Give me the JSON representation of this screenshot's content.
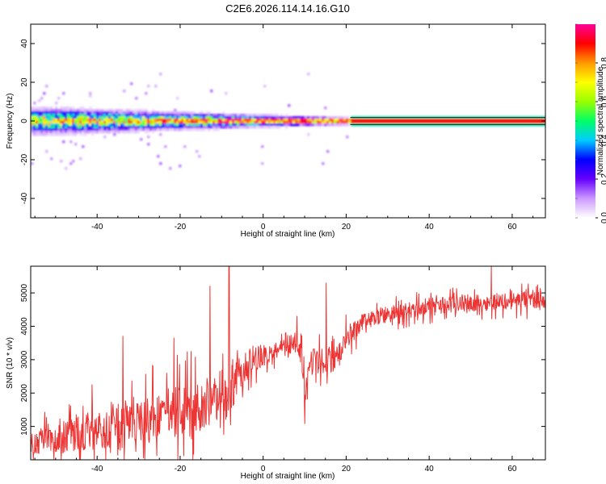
{
  "figure_title": "C2E6.2026.114.14.16.G10",
  "chart_data": [
    {
      "type": "heatmap",
      "panel": "spectrogram",
      "title": "C2E6.2026.114.14.16.G10",
      "xlabel": "Height of straight line (km)",
      "ylabel": "Frequency (Hz)",
      "xlim": [
        -56,
        68
      ],
      "ylim": [
        -50,
        50
      ],
      "xticks": [
        -40,
        -20,
        0,
        20,
        40,
        60
      ],
      "yticks": [
        -40,
        -20,
        0,
        20,
        40
      ],
      "xtick_labels": [
        "-40",
        "-20",
        "0",
        "20",
        "40",
        "60"
      ],
      "ytick_labels": [
        "-40",
        "-20",
        "0",
        "20",
        "40"
      ],
      "grid": false,
      "description_values": {
        "signal_center_freq_hz": 0,
        "broad_band_x_range": [
          -56,
          21
        ],
        "narrow_line_x_range": [
          21,
          68
        ],
        "broad_band_halfwidth_hz_start": 8,
        "broad_band_halfwidth_hz_end": 2
      },
      "colorbar": {
        "label": "Normalized spectral amplitude",
        "range": [
          0,
          1
        ],
        "ticks": [
          0.0,
          0.2,
          0.4,
          0.6,
          0.8
        ],
        "tick_labels": [
          "0.0",
          "0.2",
          "0.4",
          "0.6",
          "0.8"
        ],
        "colormap": [
          "#ffffff",
          "#cc99ff",
          "#6600ff",
          "#0000ff",
          "#00ccff",
          "#00ff66",
          "#99ff00",
          "#ffff00",
          "#ff9900",
          "#ff0000",
          "#ff0099"
        ]
      }
    },
    {
      "type": "line",
      "panel": "snr",
      "xlabel": "Height of straight line (km)",
      "ylabel": "SNR (10 * v/v)",
      "xlim": [
        -56,
        68
      ],
      "ylim": [
        0,
        5800
      ],
      "xticks": [
        -40,
        -20,
        0,
        20,
        40,
        60
      ],
      "yticks": [
        1000,
        2000,
        3000,
        4000,
        5000
      ],
      "xtick_labels": [
        "-40",
        "-20",
        "0",
        "20",
        "40",
        "60"
      ],
      "ytick_labels": [
        "1000",
        "2000",
        "3000",
        "4000",
        "5000"
      ],
      "line_color": "#ee3333",
      "series": [
        {
          "name": "SNR",
          "x": [
            -56,
            -52,
            -48,
            -44,
            -40,
            -36,
            -32,
            -28,
            -24,
            -20,
            -16,
            -12,
            -10,
            -8,
            -6,
            -4,
            -2,
            0,
            2,
            4,
            6,
            8,
            9,
            10,
            11,
            12,
            14,
            16,
            18,
            20,
            22,
            24,
            28,
            32,
            36,
            40,
            44,
            48,
            52,
            56,
            60,
            64,
            68
          ],
          "y": [
            500,
            600,
            700,
            850,
            950,
            1050,
            1150,
            1250,
            1350,
            1450,
            1600,
            1750,
            1900,
            2200,
            2600,
            2900,
            3000,
            3100,
            3150,
            3250,
            3400,
            3600,
            3300,
            2000,
            2600,
            3000,
            3000,
            3000,
            3100,
            3600,
            3900,
            4100,
            4300,
            4400,
            4500,
            4600,
            4650,
            4700,
            4700,
            4750,
            4750,
            4800,
            4800
          ],
          "noise_amplitude": [
            350,
            400,
            500,
            550,
            650,
            700,
            700,
            750,
            750,
            800,
            800,
            750,
            800,
            900,
            700,
            450,
            400,
            350,
            300,
            300,
            350,
            400,
            450,
            450,
            400,
            400,
            400,
            400,
            400,
            350,
            300,
            250,
            250,
            250,
            250,
            250,
            250,
            250,
            250,
            250,
            250,
            250,
            250
          ]
        }
      ],
      "spikes": [
        {
          "x": -8.2,
          "y": 5800
        },
        {
          "x": -12.8,
          "y": 5200
        },
        {
          "x": 15.2,
          "y": 5300
        },
        {
          "x": -21.5,
          "y": 3650
        },
        {
          "x": -33.8,
          "y": 3700
        },
        {
          "x": 10.0,
          "y": 1080
        },
        {
          "x": 55.0,
          "y": 5800
        }
      ],
      "grid": false
    }
  ]
}
